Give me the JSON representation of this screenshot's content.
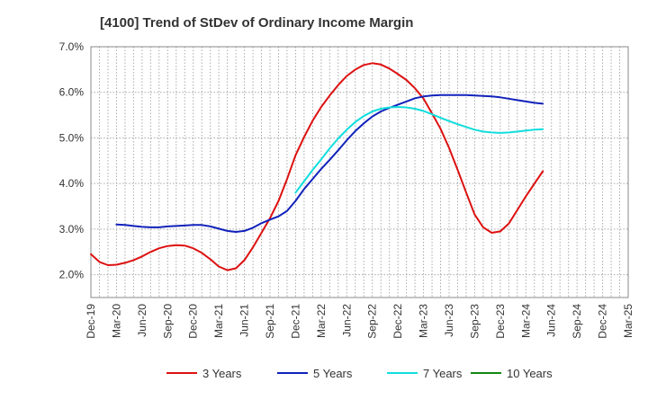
{
  "chart_data": {
    "type": "line",
    "title": "[4100]  Trend of StDev of Ordinary Income Margin",
    "xlabel": "",
    "ylabel": "",
    "y_unit": "%",
    "ylim": [
      1.5,
      7.0
    ],
    "yticks": [
      2.0,
      3.0,
      4.0,
      5.0,
      6.0,
      7.0
    ],
    "ytick_labels": [
      "2.0%",
      "3.0%",
      "4.0%",
      "5.0%",
      "6.0%",
      "7.0%"
    ],
    "x_tick_labels": [
      "Dec-19",
      "Mar-20",
      "Jun-20",
      "Sep-20",
      "Dec-20",
      "Mar-21",
      "Jun-21",
      "Sep-21",
      "Dec-21",
      "Mar-22",
      "Jun-22",
      "Sep-22",
      "Dec-22",
      "Mar-23",
      "Jun-23",
      "Sep-23",
      "Dec-23",
      "Mar-24",
      "Jun-24",
      "Sep-24",
      "Dec-24",
      "Mar-25"
    ],
    "grid": true,
    "legend_position": "bottom",
    "series": [
      {
        "name": "3 Years",
        "color": "#dd1111",
        "values": [
          2.45,
          2.28,
          2.21,
          2.22,
          2.26,
          2.32,
          2.4,
          2.5,
          2.58,
          2.63,
          2.65,
          2.64,
          2.58,
          2.48,
          2.34,
          2.18,
          2.1,
          2.14,
          2.32,
          2.6,
          2.92,
          3.24,
          3.62,
          4.1,
          4.62,
          5.02,
          5.38,
          5.68,
          5.93,
          6.16,
          6.36,
          6.5,
          6.6,
          6.64,
          6.61,
          6.52,
          6.4,
          6.27,
          6.09,
          5.86,
          5.54,
          5.2,
          4.78,
          4.3,
          3.8,
          3.32,
          3.04,
          2.92,
          2.95,
          3.12,
          3.42,
          3.72,
          4.0,
          4.27
        ]
      },
      {
        "name": "5 Years",
        "color": "#1122bb",
        "values": [
          null,
          null,
          null,
          3.1,
          3.09,
          3.07,
          3.05,
          3.04,
          3.04,
          3.06,
          3.07,
          3.08,
          3.09,
          3.09,
          3.06,
          3.01,
          2.96,
          2.94,
          2.96,
          3.03,
          3.13,
          3.21,
          3.28,
          3.4,
          3.62,
          3.88,
          4.1,
          4.32,
          4.52,
          4.73,
          4.95,
          5.15,
          5.32,
          5.47,
          5.58,
          5.66,
          5.73,
          5.8,
          5.87,
          5.91,
          5.93,
          5.94,
          5.94,
          5.94,
          5.94,
          5.93,
          5.92,
          5.91,
          5.89,
          5.86,
          5.83,
          5.8,
          5.77,
          5.75
        ]
      },
      {
        "name": "7 Years",
        "color": "#11dddd",
        "values": [
          null,
          null,
          null,
          null,
          null,
          null,
          null,
          null,
          null,
          null,
          null,
          null,
          null,
          null,
          null,
          null,
          null,
          null,
          null,
          null,
          null,
          null,
          null,
          null,
          3.8,
          4.05,
          4.3,
          4.53,
          4.77,
          4.99,
          5.18,
          5.35,
          5.48,
          5.58,
          5.64,
          5.67,
          5.68,
          5.67,
          5.64,
          5.59,
          5.52,
          5.44,
          5.37,
          5.3,
          5.24,
          5.18,
          5.14,
          5.12,
          5.11,
          5.12,
          5.14,
          5.16,
          5.18,
          5.19
        ]
      },
      {
        "name": "10 Years",
        "color": "#118811",
        "values": []
      }
    ]
  }
}
